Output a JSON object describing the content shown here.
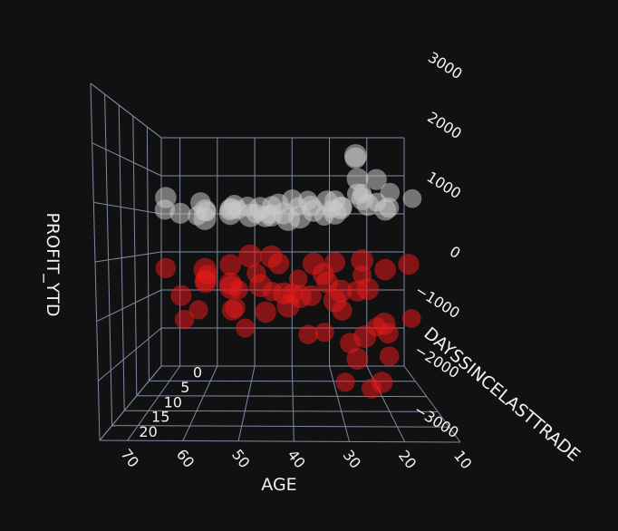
{
  "chart_data": {
    "type": "scatter",
    "dimensions": 3,
    "title": "",
    "xlabel": "AGE",
    "ylabel": "DAYSSINCELASTTRADE",
    "zlabel": "PROFIT_YTD",
    "xlim": [
      10,
      75
    ],
    "ylim": [
      0,
      25
    ],
    "zlim": [
      -3000,
      3000
    ],
    "x_ticks": [
      "10",
      "20",
      "30",
      "40",
      "50",
      "60",
      "70"
    ],
    "y_ticks": [
      "0",
      "5",
      "10",
      "15",
      "20"
    ],
    "z_ticks": [
      "−3000",
      "−2000",
      "−1000",
      "0",
      "1000",
      "2000",
      "3000"
    ],
    "background": "#111111",
    "grid": true,
    "marker_colors": {
      "profit_positive": "#c0c0c0",
      "profit_negative": "#e41a1c"
    },
    "series": [
      {
        "color": "#c8c8c8",
        "points": [
          [
            64,
            12,
            900
          ],
          [
            60,
            8,
            1000
          ],
          [
            58,
            20,
            800
          ],
          [
            55,
            5,
            950
          ],
          [
            52,
            14,
            1050
          ],
          [
            50,
            22,
            900
          ],
          [
            48,
            3,
            1100
          ],
          [
            46,
            10,
            850
          ],
          [
            44,
            18,
            1000
          ],
          [
            42,
            6,
            950
          ],
          [
            40,
            15,
            1150
          ],
          [
            38,
            2,
            900
          ],
          [
            36,
            12,
            1050
          ],
          [
            34,
            20,
            800
          ],
          [
            32,
            8,
            1200
          ],
          [
            30,
            16,
            1000
          ],
          [
            28,
            4,
            1100
          ],
          [
            26,
            12,
            1300
          ],
          [
            24,
            20,
            1050
          ],
          [
            22,
            6,
            1150
          ],
          [
            20,
            14,
            1000
          ],
          [
            18,
            22,
            1100
          ],
          [
            62,
            3,
            850
          ],
          [
            57,
            17,
            900
          ],
          [
            54,
            9,
            1000
          ],
          [
            51,
            1,
            950
          ],
          [
            47,
            19,
            850
          ],
          [
            43,
            11,
            1100
          ],
          [
            39,
            23,
            950
          ],
          [
            35,
            7,
            1000
          ],
          [
            31,
            13,
            1150
          ],
          [
            27,
            21,
            1200
          ],
          [
            23,
            5,
            1300
          ],
          [
            19,
            9,
            1000
          ],
          [
            66,
            15,
            950
          ],
          [
            45,
            6,
            900
          ],
          [
            53,
            12,
            1000
          ],
          [
            37,
            18,
            1100
          ],
          [
            29,
            2,
            1000
          ],
          [
            21,
            18,
            1250
          ],
          [
            25,
            8,
            1700
          ],
          [
            26,
            10,
            2100
          ],
          [
            22,
            12,
            1600
          ],
          [
            24,
            3,
            2400
          ],
          [
            68,
            10,
            1250
          ],
          [
            41,
            1,
            850
          ],
          [
            33,
            24,
            900
          ],
          [
            49,
            16,
            1000
          ],
          [
            59,
            14,
            1100
          ],
          [
            44,
            24,
            800
          ]
        ]
      },
      {
        "color": "#e41a1c",
        "points": [
          [
            64,
            12,
            -800
          ],
          [
            60,
            8,
            -600
          ],
          [
            58,
            20,
            -900
          ],
          [
            55,
            5,
            -700
          ],
          [
            52,
            14,
            -1000
          ],
          [
            50,
            22,
            -500
          ],
          [
            48,
            3,
            -800
          ],
          [
            46,
            10,
            -1200
          ],
          [
            44,
            18,
            -600
          ],
          [
            42,
            6,
            -900
          ],
          [
            40,
            15,
            -700
          ],
          [
            38,
            2,
            -1100
          ],
          [
            36,
            12,
            -800
          ],
          [
            34,
            20,
            -1300
          ],
          [
            32,
            8,
            -600
          ],
          [
            30,
            16,
            -1000
          ],
          [
            28,
            4,
            -900
          ],
          [
            26,
            12,
            -700
          ],
          [
            24,
            20,
            -1200
          ],
          [
            22,
            6,
            -800
          ],
          [
            20,
            14,
            -1500
          ],
          [
            18,
            22,
            -1000
          ],
          [
            62,
            3,
            -400
          ],
          [
            57,
            17,
            -300
          ],
          [
            54,
            9,
            -200
          ],
          [
            51,
            1,
            -100
          ],
          [
            47,
            19,
            -250
          ],
          [
            43,
            11,
            -150
          ],
          [
            39,
            23,
            -300
          ],
          [
            35,
            7,
            -200
          ],
          [
            31,
            13,
            -100
          ],
          [
            27,
            21,
            -250
          ],
          [
            23,
            5,
            -150
          ],
          [
            19,
            9,
            -300
          ],
          [
            66,
            15,
            -200
          ],
          [
            45,
            6,
            -50
          ],
          [
            53,
            12,
            -1100
          ],
          [
            37,
            18,
            -1400
          ],
          [
            29,
            2,
            -1200
          ],
          [
            21,
            18,
            -1800
          ],
          [
            25,
            8,
            -2300
          ],
          [
            20,
            10,
            -2700
          ],
          [
            22,
            4,
            -2000
          ],
          [
            24,
            16,
            -2500
          ],
          [
            28,
            14,
            -1700
          ],
          [
            30,
            20,
            -2200
          ],
          [
            18,
            6,
            -1600
          ],
          [
            56,
            1,
            -900
          ],
          [
            61,
            19,
            -1100
          ],
          [
            41,
            3,
            -1300
          ],
          [
            33,
            9,
            -400
          ],
          [
            49,
            21,
            -1200
          ],
          [
            59,
            11,
            -500
          ],
          [
            15,
            12,
            -150
          ]
        ]
      }
    ]
  }
}
